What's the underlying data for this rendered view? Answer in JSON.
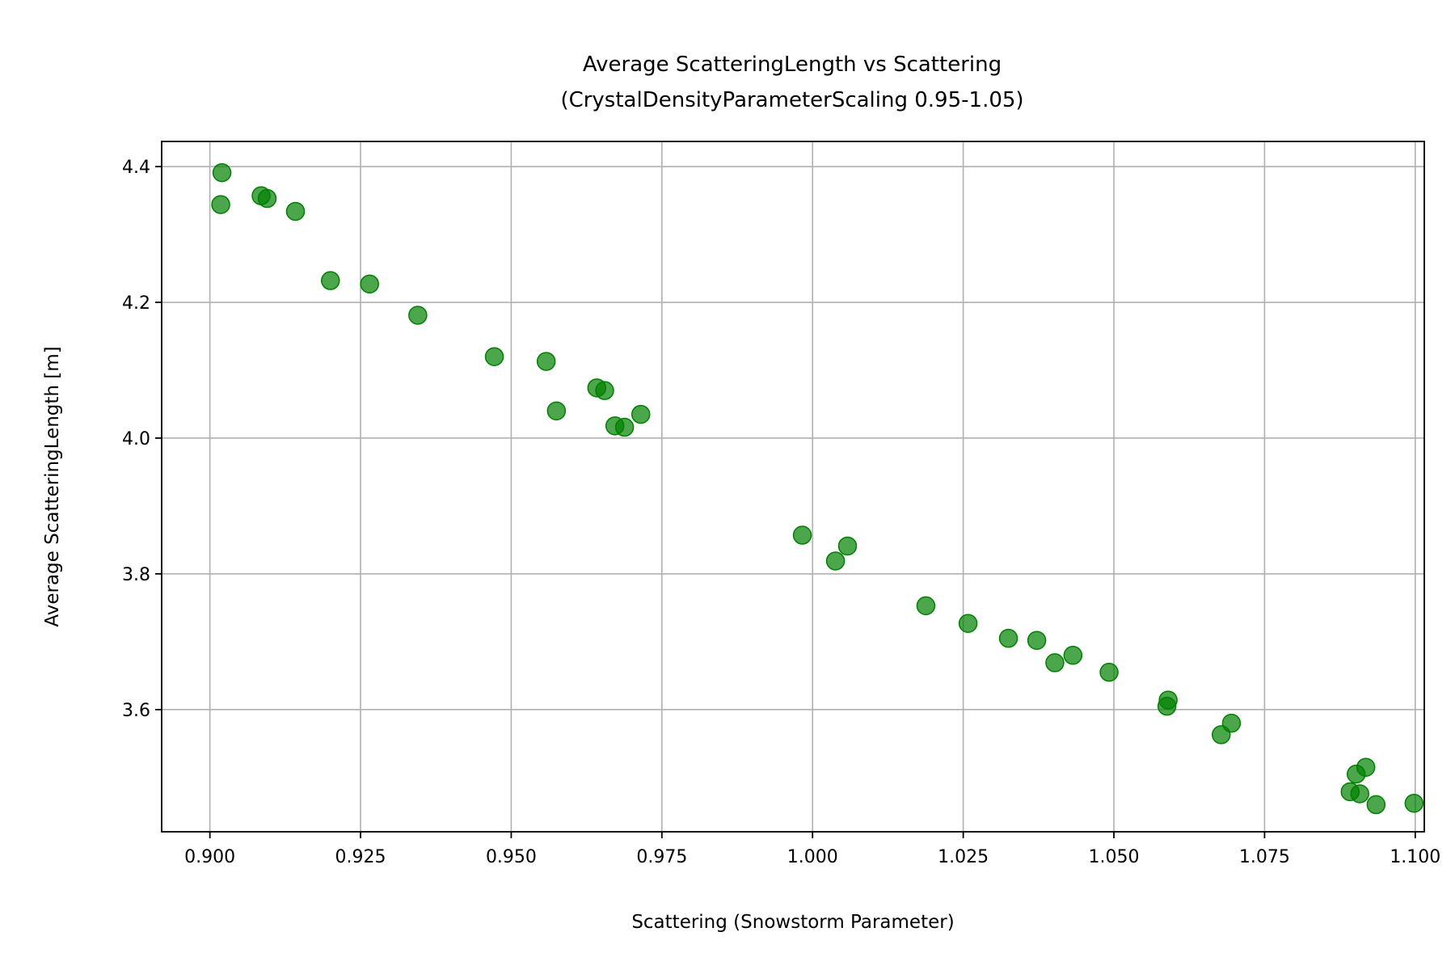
{
  "chart_data": {
    "type": "scatter",
    "title_line1": "Average ScatteringLength vs Scattering",
    "title_line2": "(CrystalDensityParameterScaling 0.95-1.05)",
    "xlabel": "Scattering (Snowstorm Parameter)",
    "ylabel": "Average ScatteringLength [m]",
    "xlim": [
      0.892,
      1.1015
    ],
    "ylim": [
      3.42,
      4.437
    ],
    "xticks": [
      "0.900",
      "0.925",
      "0.950",
      "0.975",
      "1.000",
      "1.025",
      "1.050",
      "1.075",
      "1.100"
    ],
    "yticks": [
      "3.6",
      "3.8",
      "4.0",
      "4.2",
      "4.4"
    ],
    "grid": true,
    "marker_color": "#008000",
    "points": [
      {
        "x": 0.902,
        "y": 4.391
      },
      {
        "x": 0.9018,
        "y": 4.344
      },
      {
        "x": 0.9085,
        "y": 4.357
      },
      {
        "x": 0.9095,
        "y": 4.353
      },
      {
        "x": 0.9142,
        "y": 4.334
      },
      {
        "x": 0.92,
        "y": 4.232
      },
      {
        "x": 0.9265,
        "y": 4.227
      },
      {
        "x": 0.9345,
        "y": 4.181
      },
      {
        "x": 0.9472,
        "y": 4.12
      },
      {
        "x": 0.9558,
        "y": 4.113
      },
      {
        "x": 0.9575,
        "y": 4.04
      },
      {
        "x": 0.9642,
        "y": 4.074
      },
      {
        "x": 0.9655,
        "y": 4.07
      },
      {
        "x": 0.9672,
        "y": 4.018
      },
      {
        "x": 0.9688,
        "y": 4.016
      },
      {
        "x": 0.9715,
        "y": 4.035
      },
      {
        "x": 0.9983,
        "y": 3.857
      },
      {
        "x": 1.0038,
        "y": 3.819
      },
      {
        "x": 1.0058,
        "y": 3.841
      },
      {
        "x": 1.0188,
        "y": 3.753
      },
      {
        "x": 1.0258,
        "y": 3.727
      },
      {
        "x": 1.0325,
        "y": 3.705
      },
      {
        "x": 1.0372,
        "y": 3.702
      },
      {
        "x": 1.0402,
        "y": 3.669
      },
      {
        "x": 1.0432,
        "y": 3.68
      },
      {
        "x": 1.0492,
        "y": 3.655
      },
      {
        "x": 1.0588,
        "y": 3.605
      },
      {
        "x": 1.059,
        "y": 3.614
      },
      {
        "x": 1.0678,
        "y": 3.563
      },
      {
        "x": 1.0695,
        "y": 3.58
      },
      {
        "x": 1.0892,
        "y": 3.479
      },
      {
        "x": 1.0902,
        "y": 3.505
      },
      {
        "x": 1.0908,
        "y": 3.476
      },
      {
        "x": 1.0918,
        "y": 3.515
      },
      {
        "x": 1.0935,
        "y": 3.46
      },
      {
        "x": 1.0998,
        "y": 3.462
      }
    ]
  }
}
